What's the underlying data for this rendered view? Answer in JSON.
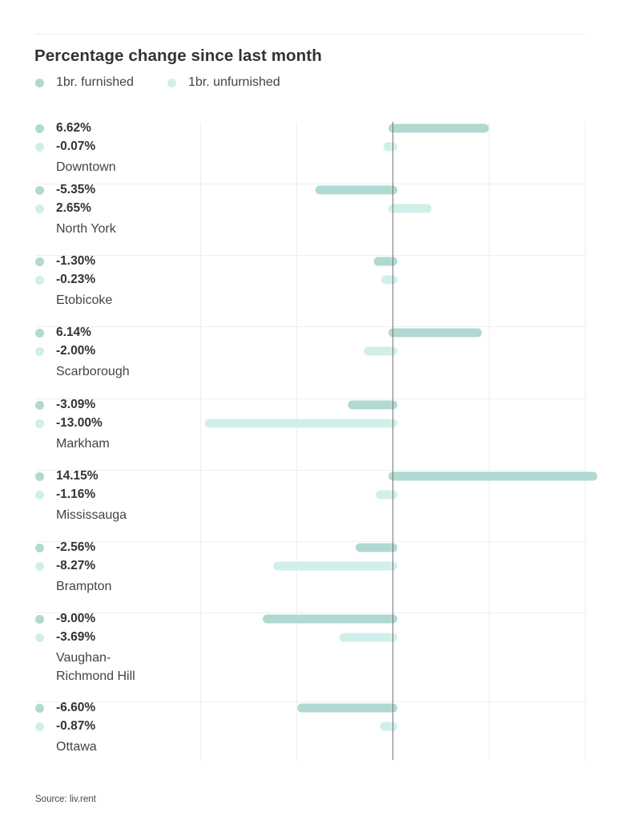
{
  "chart_data": {
    "type": "bar",
    "orientation": "horizontal",
    "title": "Percentage change since last month",
    "xlabel": "",
    "ylabel": "",
    "grid": true,
    "legend_position": "top-left",
    "categories": [
      "Downtown",
      "North York",
      "Etobicoke",
      "Scarborough",
      "Markham",
      "Mississauga",
      "Brampton",
      "Vaughan-\nRichmond Hill",
      "Ottawa"
    ],
    "series": [
      {
        "name": "1br. furnished",
        "color": "#b0d9d1",
        "values": [
          6.62,
          -5.35,
          -1.3,
          6.14,
          -3.09,
          14.15,
          -2.56,
          -9.0,
          -6.6
        ],
        "labels": [
          "6.62%",
          "-5.35%",
          "-1.30%",
          "6.14%",
          "-3.09%",
          "14.15%",
          "-2.56%",
          "-9.00%",
          "-6.60%"
        ]
      },
      {
        "name": "1br. unfurnished",
        "color": "#d0efea",
        "values": [
          -0.07,
          2.65,
          -0.23,
          -2.0,
          -13.0,
          -1.16,
          -8.27,
          -3.69,
          -0.87
        ],
        "labels": [
          "-0.07%",
          "2.65%",
          "-0.23%",
          "-2.00%",
          "-13.00%",
          "-1.16%",
          "-8.27%",
          "-3.69%",
          "-0.87%"
        ]
      }
    ],
    "xlim": [
      -13.33,
      13.33
    ],
    "gridlines_at": [
      -13.33,
      -6.67,
      0,
      6.67,
      13.33
    ],
    "source": "Source: liv.rent"
  },
  "colors": {
    "furnished": "#b0d9d1",
    "unfurnished": "#d0efea",
    "zero_axis": "#777777",
    "grid": "#eeeeee"
  }
}
